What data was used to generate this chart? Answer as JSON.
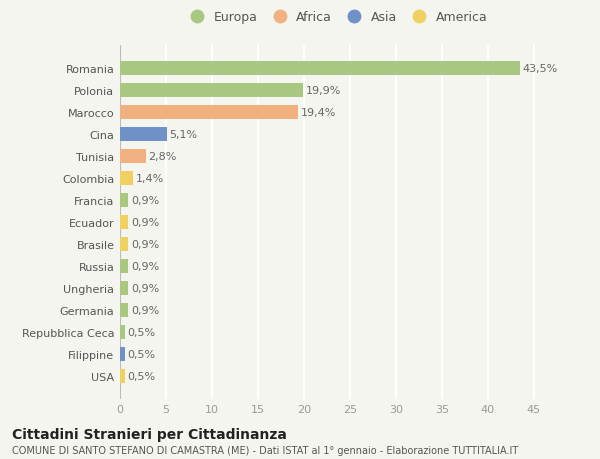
{
  "categories": [
    "Romania",
    "Polonia",
    "Marocco",
    "Cina",
    "Tunisia",
    "Colombia",
    "Francia",
    "Ecuador",
    "Brasile",
    "Russia",
    "Ungheria",
    "Germania",
    "Repubblica Ceca",
    "Filippine",
    "USA"
  ],
  "values": [
    43.5,
    19.9,
    19.4,
    5.1,
    2.8,
    1.4,
    0.9,
    0.9,
    0.9,
    0.9,
    0.9,
    0.9,
    0.5,
    0.5,
    0.5
  ],
  "labels": [
    "43,5%",
    "19,9%",
    "19,4%",
    "5,1%",
    "2,8%",
    "1,4%",
    "0,9%",
    "0,9%",
    "0,9%",
    "0,9%",
    "0,9%",
    "0,9%",
    "0,5%",
    "0,5%",
    "0,5%"
  ],
  "colors": [
    "#a8c882",
    "#a8c882",
    "#f0b080",
    "#7090c8",
    "#f0b080",
    "#f0d060",
    "#a8c882",
    "#f0d060",
    "#f0d060",
    "#a8c882",
    "#a8c882",
    "#a8c882",
    "#a8c882",
    "#7090c8",
    "#f0d060"
  ],
  "legend_labels": [
    "Europa",
    "Africa",
    "Asia",
    "America"
  ],
  "legend_colors": [
    "#a8c882",
    "#f0b080",
    "#7090c8",
    "#f0d060"
  ],
  "title": "Cittadini Stranieri per Cittadinanza",
  "subtitle": "COMUNE DI SANTO STEFANO DI CAMASTRA (ME) - Dati ISTAT al 1° gennaio - Elaborazione TUTTITALIA.IT",
  "xlim": [
    0,
    47
  ],
  "xticks": [
    0,
    5,
    10,
    15,
    20,
    25,
    30,
    35,
    40,
    45
  ],
  "background_color": "#f5f5f0",
  "grid_color": "#ffffff",
  "bar_height": 0.65,
  "title_fontsize": 10,
  "subtitle_fontsize": 7,
  "label_fontsize": 8,
  "tick_fontsize": 8,
  "legend_fontsize": 9
}
